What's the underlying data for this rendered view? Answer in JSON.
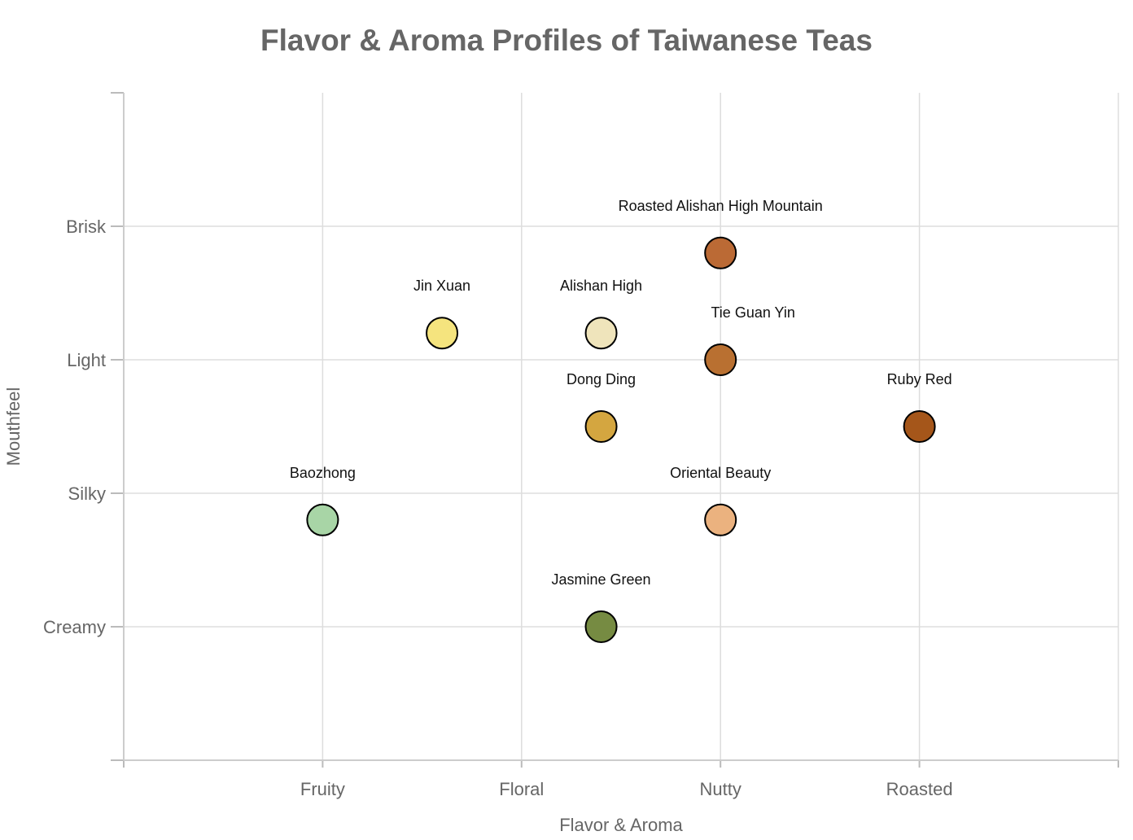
{
  "chart_data": {
    "type": "scatter",
    "title": "Flavor & Aroma Profiles of Taiwanese Teas",
    "xlabel": "Flavor & Aroma",
    "ylabel": "Mouthfeel",
    "x_categories": [
      "Fruity",
      "Floral",
      "Nutty",
      "Roasted"
    ],
    "y_categories": [
      "Creamy",
      "Silky",
      "Light",
      "Brisk"
    ],
    "xlim": [
      0,
      5
    ],
    "ylim": [
      0,
      5
    ],
    "grid": true,
    "points": [
      {
        "label": "Baozhong",
        "x": 1.0,
        "y": 1.8,
        "color": "#a8d5a6"
      },
      {
        "label": "Jin Xuan",
        "x": 1.6,
        "y": 3.2,
        "color": "#f5e47e"
      },
      {
        "label": "Alishan High",
        "x": 2.4,
        "y": 3.2,
        "color": "#efe4bb"
      },
      {
        "label": "Dong Ding",
        "x": 2.4,
        "y": 2.5,
        "color": "#d4a640"
      },
      {
        "label": "Jasmine Green",
        "x": 2.4,
        "y": 1.0,
        "color": "#768b42"
      },
      {
        "label": "Roasted Alishan High Mountain",
        "x": 3.0,
        "y": 3.8,
        "color": "#bb6a35"
      },
      {
        "label": "Tie Guan Yin",
        "x": 3.0,
        "y": 3.0,
        "color": "#b97031"
      },
      {
        "label": "Oriental Beauty",
        "x": 3.0,
        "y": 1.8,
        "color": "#ebb27f"
      },
      {
        "label": "Ruby Red",
        "x": 4.0,
        "y": 2.5,
        "color": "#a5561a"
      }
    ]
  }
}
